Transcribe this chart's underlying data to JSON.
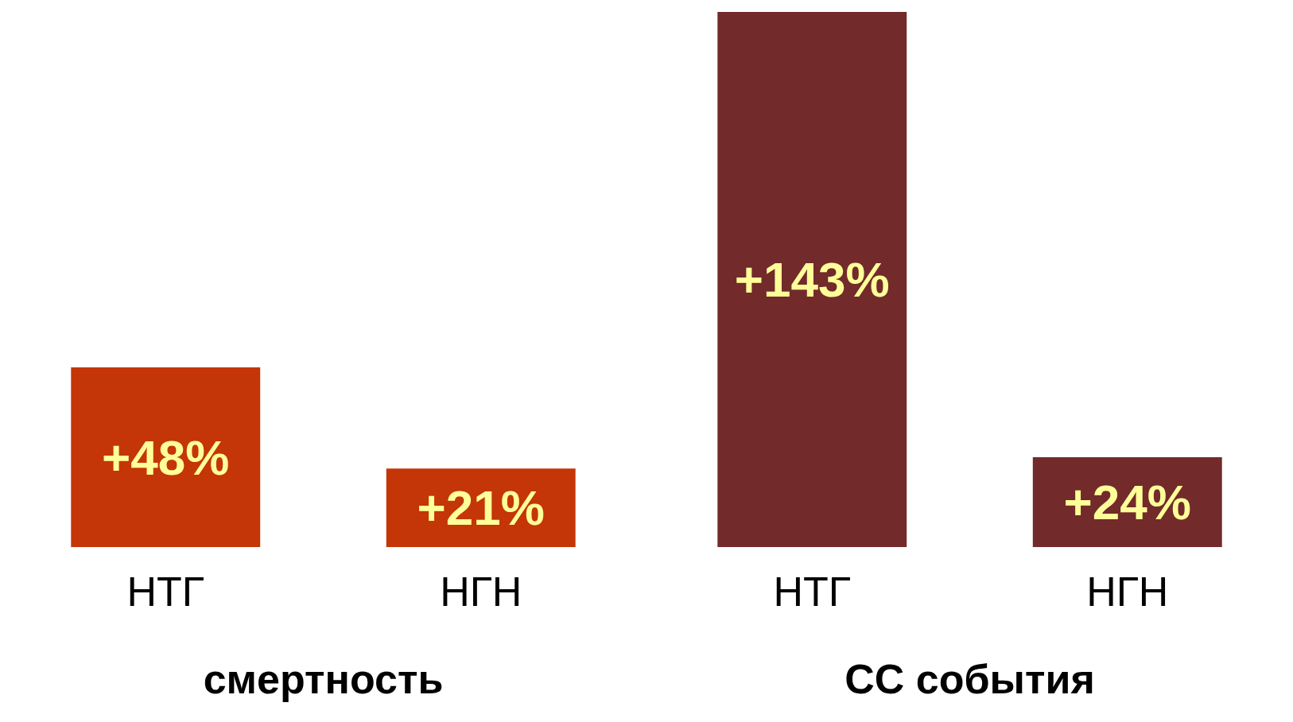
{
  "chart_data": [
    {
      "type": "bar",
      "categories": [
        "НТГ",
        "НГН"
      ],
      "values": [
        48,
        21
      ],
      "value_labels": [
        "+48%",
        "+21%"
      ],
      "colors": [
        "#c43508",
        "#c43508"
      ],
      "xlabel": "смертность",
      "tick_labels": "x"
    },
    {
      "type": "bar",
      "categories": [
        "НТГ",
        "НГН"
      ],
      "values": [
        143,
        24
      ],
      "value_labels": [
        "+143%",
        "+24%"
      ],
      "colors": [
        "#722a2a",
        "#722a2a"
      ],
      "xlabel": "СС события",
      "tick_labels": "x"
    }
  ]
}
